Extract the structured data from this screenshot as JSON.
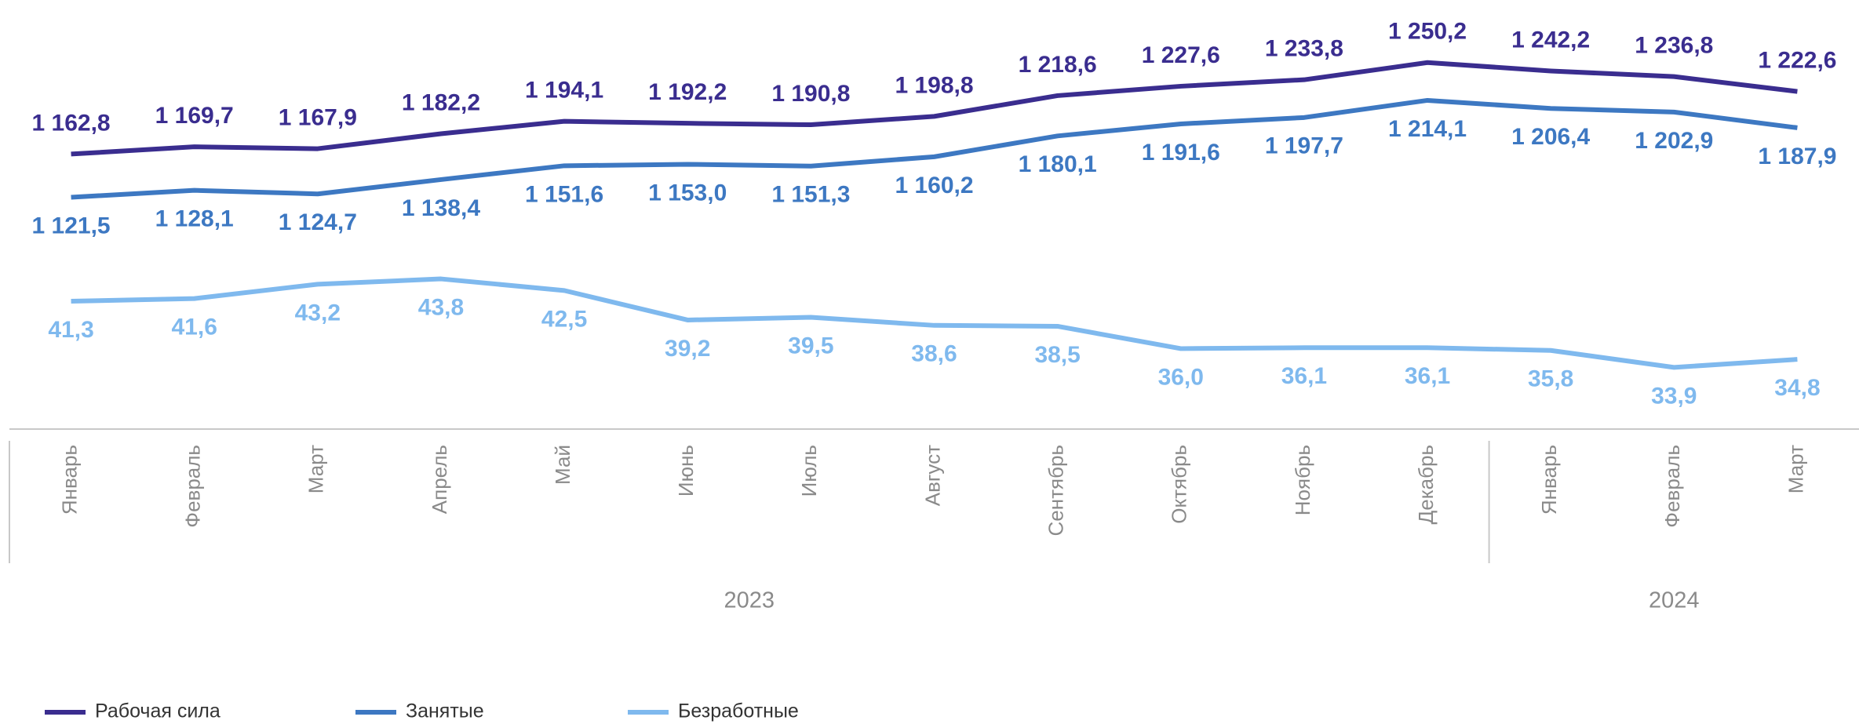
{
  "chart_data": {
    "type": "line",
    "categories": [
      "Январь",
      "Февраль",
      "Март",
      "Апрель",
      "Май",
      "Июнь",
      "Июль",
      "Август",
      "Сентябрь",
      "Октябрь",
      "Ноябрь",
      "Декабрь",
      "Январь",
      "Февраль",
      "Март"
    ],
    "category_groups": [
      {
        "name": "2023",
        "size": 12
      },
      {
        "name": "2024",
        "size": 3
      }
    ],
    "series": [
      {
        "name": "Рабочая сила",
        "color": "#3a2d8f",
        "values": [
          1162.8,
          1169.7,
          1167.9,
          1182.2,
          1194.1,
          1192.2,
          1190.8,
          1198.8,
          1218.6,
          1227.6,
          1233.8,
          1250.2,
          1242.2,
          1236.8,
          1222.6
        ],
        "value_labels": [
          "1 162,8",
          "1 169,7",
          "1 167,9",
          "1 182,2",
          "1 194,1",
          "1 192,2",
          "1 190,8",
          "1 198,8",
          "1 218,6",
          "1 227,6",
          "1 233,8",
          "1 250,2",
          "1 242,2",
          "1 236,8",
          "1 222,6"
        ]
      },
      {
        "name": "Занятые",
        "color": "#3d78c2",
        "values": [
          1121.5,
          1128.1,
          1124.7,
          1138.4,
          1151.6,
          1153.0,
          1151.3,
          1160.2,
          1180.1,
          1191.6,
          1197.7,
          1214.1,
          1206.4,
          1202.9,
          1187.9
        ],
        "value_labels": [
          "1 121,5",
          "1 128,1",
          "1 124,7",
          "1 138,4",
          "1 151,6",
          "1 153,0",
          "1 151,3",
          "1 160,2",
          "1 180,1",
          "1 191,6",
          "1 197,7",
          "1 214,1",
          "1 206,4",
          "1 202,9",
          "1 187,9"
        ]
      },
      {
        "name": "Безработные",
        "color": "#7fb9ee",
        "axis": "y2",
        "values": [
          41.3,
          41.6,
          43.2,
          43.8,
          42.5,
          39.2,
          39.5,
          38.6,
          38.5,
          36.0,
          36.1,
          36.1,
          35.8,
          33.9,
          34.8
        ],
        "value_labels": [
          "41,3",
          "41,6",
          "43,2",
          "43,8",
          "42,5",
          "39,2",
          "39,5",
          "38,6",
          "38,5",
          "36,0",
          "36,1",
          "36,1",
          "35,8",
          "33,9",
          "34,8"
        ]
      }
    ],
    "ylim": [
      900,
      1310
    ],
    "y2lim": [
      27,
      75
    ],
    "legend": "bottom-left"
  }
}
